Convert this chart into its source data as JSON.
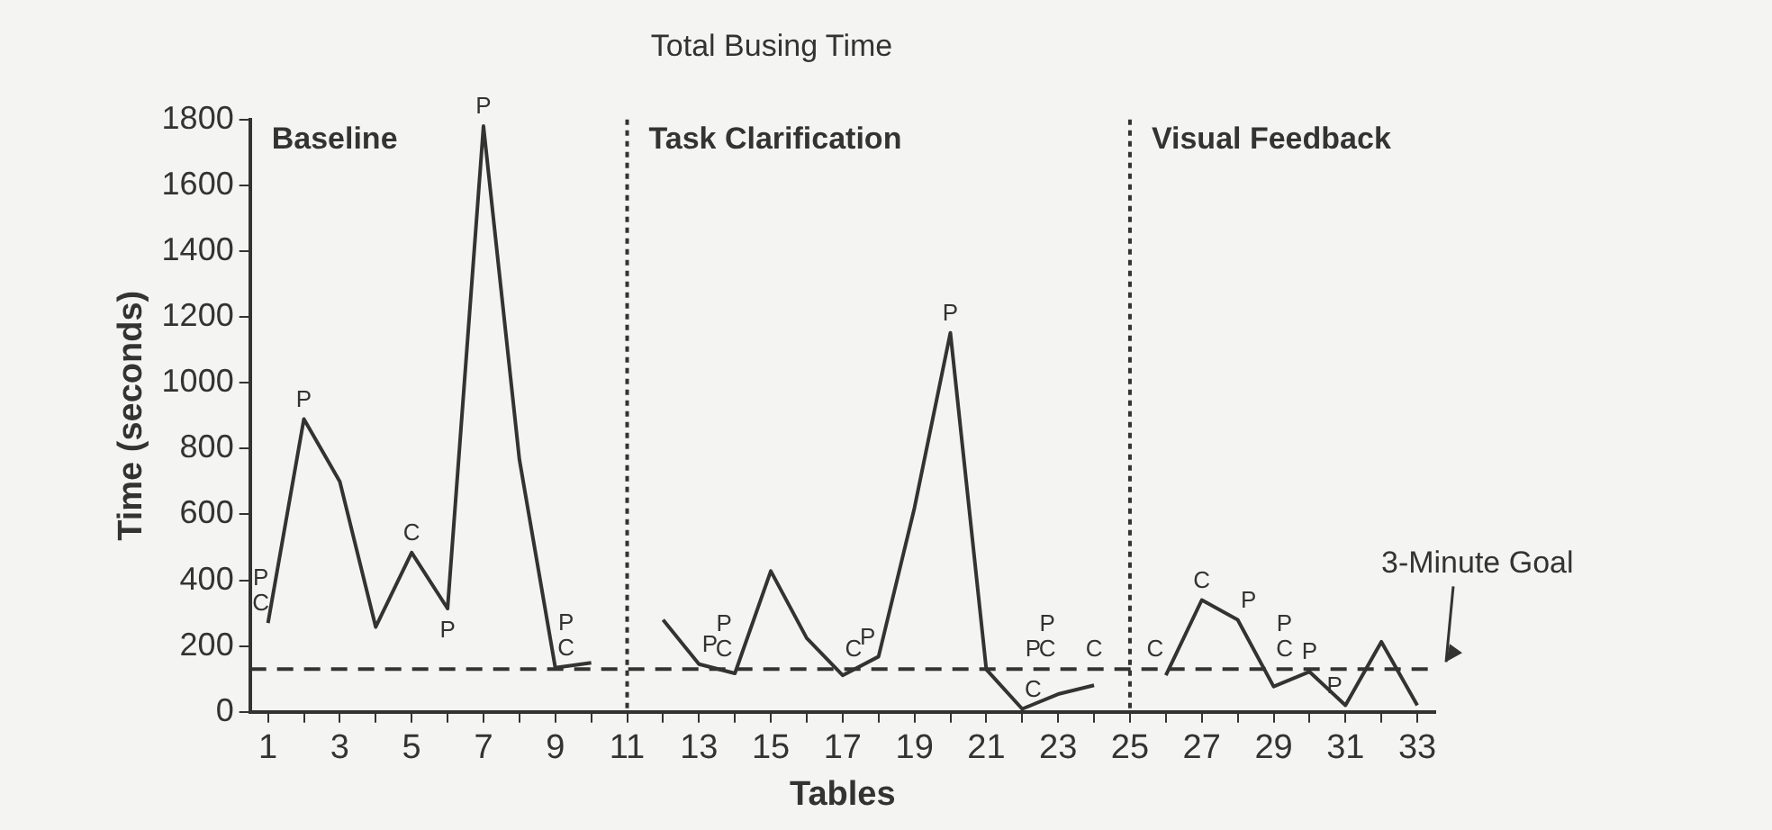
{
  "chart_data": {
    "type": "line",
    "title": "Total Busing Time",
    "xlabel": "Tables",
    "ylabel": "Time (seconds)",
    "x": [
      1,
      2,
      3,
      4,
      5,
      6,
      7,
      8,
      9,
      10,
      11,
      12,
      13,
      14,
      15,
      16,
      17,
      18,
      19,
      20,
      21,
      22,
      23,
      24,
      25,
      26,
      27,
      28,
      29,
      30,
      31,
      32,
      33
    ],
    "series": [
      {
        "color": "#333333",
        "values": [
          270,
          890,
          700,
          258,
          484,
          314,
          1780,
          767,
          134,
          149,
          null,
          280,
          145,
          117,
          428,
          224,
          111,
          168,
          620,
          1152,
          129,
          9,
          54,
          81,
          null,
          111,
          340,
          280,
          77,
          122,
          20,
          213,
          20
        ]
      }
    ],
    "xlim": [
      0.5,
      33.5
    ],
    "xticks": [
      1,
      {
        "value": 2,
        "label": null
      },
      3,
      {
        "value": 4,
        "label": null
      },
      5,
      {
        "value": 6,
        "label": null
      },
      7,
      {
        "value": 8,
        "label": null
      },
      9,
      {
        "value": 10,
        "label": null
      },
      11,
      {
        "value": 12,
        "label": null
      },
      13,
      {
        "value": 14,
        "label": null
      },
      15,
      {
        "value": 16,
        "label": null
      },
      17,
      {
        "value": 18,
        "label": null
      },
      19,
      {
        "value": 20,
        "label": null
      },
      21,
      {
        "value": 22,
        "label": null
      },
      23,
      {
        "value": 24,
        "label": null
      },
      25,
      {
        "value": 26,
        "label": null
      },
      27,
      {
        "value": 28,
        "label": null
      },
      29,
      {
        "value": 30,
        "label": null
      },
      31,
      {
        "value": 32,
        "label": null
      },
      33
    ],
    "ylim": [
      0,
      1800
    ],
    "yticks": [
      0,
      200,
      400,
      600,
      800,
      1000,
      1200,
      1400,
      1600,
      1800
    ],
    "grid": false,
    "legend": false,
    "marker": "none",
    "line_style": "solid",
    "ref_lines": [
      {
        "axis": "y",
        "value": 130,
        "label": "3-Minute Goal",
        "line_style": "dashed",
        "color": "#333333"
      },
      {
        "axis": "x",
        "value": 11,
        "line_style": "dotted",
        "color": "#333333"
      },
      {
        "axis": "x",
        "value": 25,
        "line_style": "dotted",
        "color": "#333333"
      }
    ],
    "annotations": [
      "Baseline",
      "Task Clarification",
      "Visual Feedback",
      {
        "text": "C",
        "x": 1,
        "y": 270
      },
      {
        "text": "P",
        "x": 1,
        "y": 270
      },
      {
        "text": "P",
        "x": 2,
        "y": 890
      },
      {
        "text": "C",
        "x": 5,
        "y": 484
      },
      {
        "text": "P",
        "x": 6,
        "y": 314
      },
      {
        "text": "P",
        "x": 7,
        "y": 1780
      },
      {
        "text": "C",
        "x": 9,
        "y": 134
      },
      {
        "text": "P",
        "x": 9,
        "y": 134
      },
      {
        "text": "P",
        "x": 13,
        "y": 145
      },
      {
        "text": "C",
        "x": 14,
        "y": 117
      },
      {
        "text": "P",
        "x": 14,
        "y": 117
      },
      {
        "text": "C",
        "x": 17,
        "y": 111
      },
      {
        "text": "P",
        "x": 18,
        "y": 168
      },
      {
        "text": "P",
        "x": 20,
        "y": 1152
      },
      {
        "text": "C",
        "x": 22,
        "y": 9
      },
      {
        "text": "P",
        "x": 22,
        "y": 9
      },
      {
        "text": "C",
        "x": 23,
        "y": 54
      },
      {
        "text": "P",
        "x": 23,
        "y": 54
      },
      {
        "text": "C",
        "x": 24,
        "y": 81
      },
      {
        "text": "C",
        "x": 26,
        "y": 111
      },
      {
        "text": "C",
        "x": 27,
        "y": 340
      },
      {
        "text": "P",
        "x": 28,
        "y": 280
      },
      {
        "text": "C",
        "x": 29,
        "y": 77
      },
      {
        "text": "P",
        "x": 29,
        "y": 77
      },
      {
        "text": "P",
        "x": 30,
        "y": 122
      },
      {
        "text": "P",
        "x": 31,
        "y": 20
      }
    ]
  }
}
